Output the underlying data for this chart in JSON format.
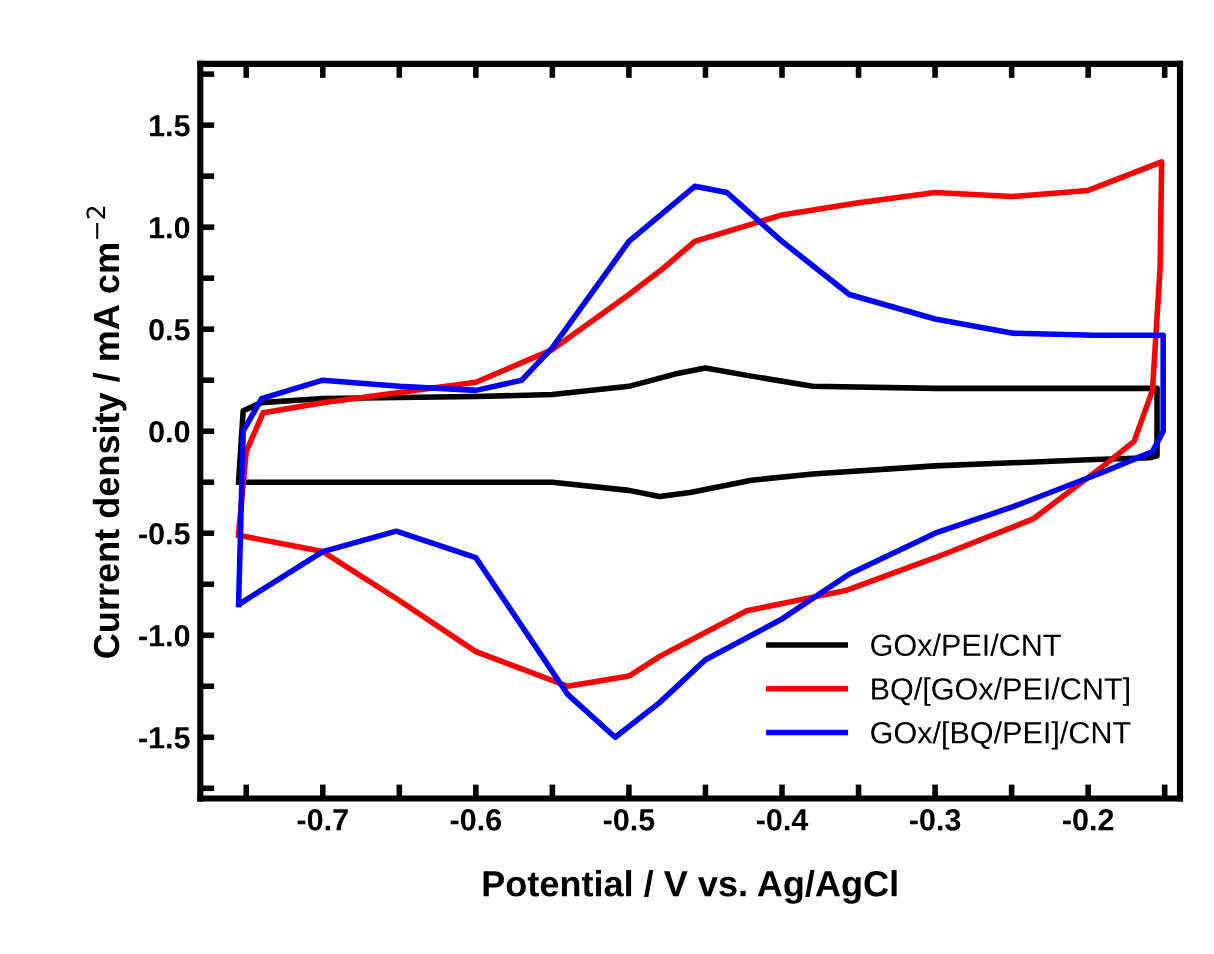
{
  "chart_data": {
    "type": "line",
    "xlabel": "Potential / V vs. Ag/AgCl",
    "ylabel": "Current density / mA cm$^{−2}$",
    "xlim": [
      -0.78,
      -0.14
    ],
    "ylim": [
      -1.8,
      1.8
    ],
    "xticks": [
      {
        "value": -0.75,
        "label": null
      },
      -0.7,
      {
        "value": -0.65,
        "label": null
      },
      -0.6,
      {
        "value": -0.55,
        "label": null
      },
      -0.5,
      {
        "value": -0.45,
        "label": null
      },
      -0.4,
      {
        "value": -0.35,
        "label": null
      },
      -0.3,
      {
        "value": -0.25,
        "label": null
      },
      -0.2,
      {
        "value": -0.15,
        "label": null
      }
    ],
    "yticks": [
      {
        "value": -1.75,
        "label": null
      },
      -1.5,
      {
        "value": -1.25,
        "label": null
      },
      {
        "value": -1,
        "label": "-1.0"
      },
      {
        "value": -0.75,
        "label": null
      },
      -0.5,
      {
        "value": -0.25,
        "label": null
      },
      {
        "value": 0,
        "label": "0.0"
      },
      {
        "value": 0.25,
        "label": null
      },
      0.5,
      {
        "value": 0.75,
        "label": null
      },
      {
        "value": 1,
        "label": "1.0"
      },
      {
        "value": 1.25,
        "label": null
      },
      1.5,
      {
        "value": 1.75,
        "label": null
      }
    ],
    "grid": false,
    "legend": "bottom right",
    "line_style": "solid",
    "marker": "none",
    "series": [
      {
        "name": "GOx/PEI/CNT",
        "color": "#000000",
        "x": [
          -0.755,
          -0.752,
          -0.74,
          -0.7,
          -0.6,
          -0.55,
          -0.5,
          -0.47,
          -0.45,
          -0.42,
          -0.38,
          -0.3,
          -0.2,
          -0.155,
          -0.155,
          -0.16,
          -0.2,
          -0.3,
          -0.38,
          -0.42,
          -0.46,
          -0.48,
          -0.5,
          -0.55,
          -0.6,
          -0.7,
          -0.753
        ],
        "values": [
          -0.25,
          0.1,
          0.14,
          0.16,
          0.17,
          0.18,
          0.22,
          0.28,
          0.31,
          0.27,
          0.22,
          0.21,
          0.21,
          0.21,
          -0.12,
          -0.13,
          -0.14,
          -0.17,
          -0.21,
          -0.24,
          -0.3,
          -0.32,
          -0.29,
          -0.25,
          -0.25,
          -0.25,
          -0.25
        ]
      },
      {
        "name": "BQ/[GOx/PEI/CNT]",
        "color": "#ff0000",
        "x": [
          -0.755,
          -0.75,
          -0.739,
          -0.7,
          -0.6,
          -0.55,
          -0.5,
          -0.479,
          -0.457,
          -0.4,
          -0.35,
          -0.3,
          -0.25,
          -0.2,
          -0.152,
          -0.153,
          -0.158,
          -0.17,
          -0.19,
          -0.236,
          -0.3,
          -0.358,
          -0.423,
          -0.479,
          -0.5,
          -0.54,
          -0.6,
          -0.652,
          -0.7,
          -0.755
        ],
        "values": [
          -0.5,
          -0.1,
          0.09,
          0.14,
          0.24,
          0.4,
          0.67,
          0.79,
          0.93,
          1.06,
          1.12,
          1.17,
          1.15,
          1.18,
          1.32,
          0.8,
          0.2,
          -0.05,
          -0.17,
          -0.43,
          -0.62,
          -0.78,
          -0.88,
          -1.1,
          -1.2,
          -1.25,
          -1.08,
          -0.82,
          -0.59,
          -0.51
        ]
      },
      {
        "name": "GOx/[BQ/PEI]/CNT",
        "color": "#0000ff",
        "x": [
          -0.755,
          -0.752,
          -0.74,
          -0.7,
          -0.65,
          -0.6,
          -0.57,
          -0.55,
          -0.5,
          -0.457,
          -0.436,
          -0.4,
          -0.356,
          -0.3,
          -0.249,
          -0.196,
          -0.151,
          -0.151,
          -0.158,
          -0.19,
          -0.249,
          -0.3,
          -0.356,
          -0.4,
          -0.45,
          -0.48,
          -0.509,
          -0.54,
          -0.6,
          -0.652,
          -0.7,
          -0.753
        ],
        "values": [
          -0.85,
          0.0,
          0.16,
          0.25,
          0.22,
          0.2,
          0.25,
          0.41,
          0.93,
          1.2,
          1.17,
          0.93,
          0.67,
          0.55,
          0.48,
          0.47,
          0.47,
          0.0,
          -0.1,
          -0.2,
          -0.37,
          -0.5,
          -0.7,
          -0.92,
          -1.12,
          -1.33,
          -1.5,
          -1.29,
          -0.62,
          -0.49,
          -0.59,
          -0.84
        ]
      }
    ]
  }
}
